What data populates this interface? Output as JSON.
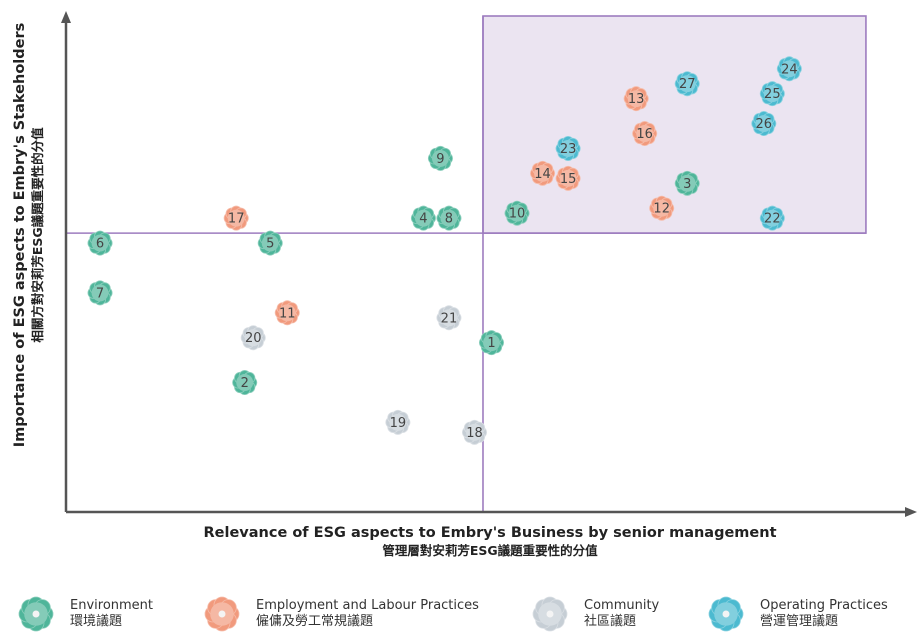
{
  "chart_data": {
    "type": "scatter",
    "title": "",
    "xlabel": "Relevance of ESG aspects to Embry's Business by senior management",
    "xlabel_zh": "管理層對安莉芳ESG議題重要性的分值",
    "ylabel": "Importance of ESG aspects to Embry's Stakeholders",
    "ylabel_zh": "相關方對安莉芳ESG議題重要性的分值",
    "xlim": [
      0,
      100
    ],
    "ylim": [
      0,
      100
    ],
    "grid": false,
    "legend_position": "bottom",
    "quadrant_lines": {
      "x": 49,
      "y": 56
    },
    "highlight_region": {
      "x": [
        49,
        94
      ],
      "y": [
        56,
        100
      ]
    },
    "series": [
      {
        "name": "Environment",
        "name_zh": "環境議題",
        "color": "#4fb59a",
        "points": [
          {
            "id": "1",
            "x": 50,
            "y": 34
          },
          {
            "id": "2",
            "x": 21,
            "y": 26
          },
          {
            "id": "3",
            "x": 73,
            "y": 66
          },
          {
            "id": "4",
            "x": 42,
            "y": 59
          },
          {
            "id": "5",
            "x": 24,
            "y": 54
          },
          {
            "id": "6",
            "x": 4,
            "y": 54
          },
          {
            "id": "7",
            "x": 4,
            "y": 44
          },
          {
            "id": "8",
            "x": 45,
            "y": 59
          },
          {
            "id": "9",
            "x": 44,
            "y": 71
          },
          {
            "id": "10",
            "x": 53,
            "y": 60
          }
        ]
      },
      {
        "name": "Employment and Labour Practices",
        "name_zh": "僱傭及勞工常規議題",
        "color": "#f19a7d",
        "points": [
          {
            "id": "11",
            "x": 26,
            "y": 40
          },
          {
            "id": "12",
            "x": 70,
            "y": 61
          },
          {
            "id": "13",
            "x": 67,
            "y": 83
          },
          {
            "id": "14",
            "x": 56,
            "y": 68
          },
          {
            "id": "15",
            "x": 59,
            "y": 67
          },
          {
            "id": "16",
            "x": 68,
            "y": 76
          },
          {
            "id": "17",
            "x": 20,
            "y": 59
          }
        ]
      },
      {
        "name": "Community",
        "name_zh": "社區議題",
        "color": "#c6ced5",
        "points": [
          {
            "id": "18",
            "x": 48,
            "y": 16
          },
          {
            "id": "19",
            "x": 39,
            "y": 18
          },
          {
            "id": "20",
            "x": 22,
            "y": 35
          },
          {
            "id": "21",
            "x": 45,
            "y": 39
          }
        ]
      },
      {
        "name": "Operating Practices",
        "name_zh": "營運管理議題",
        "color": "#4cbad0",
        "points": [
          {
            "id": "22",
            "x": 83,
            "y": 59
          },
          {
            "id": "23",
            "x": 59,
            "y": 73
          },
          {
            "id": "24",
            "x": 85,
            "y": 89
          },
          {
            "id": "25",
            "x": 83,
            "y": 84
          },
          {
            "id": "26",
            "x": 82,
            "y": 78
          },
          {
            "id": "27",
            "x": 73,
            "y": 86
          }
        ]
      }
    ]
  }
}
